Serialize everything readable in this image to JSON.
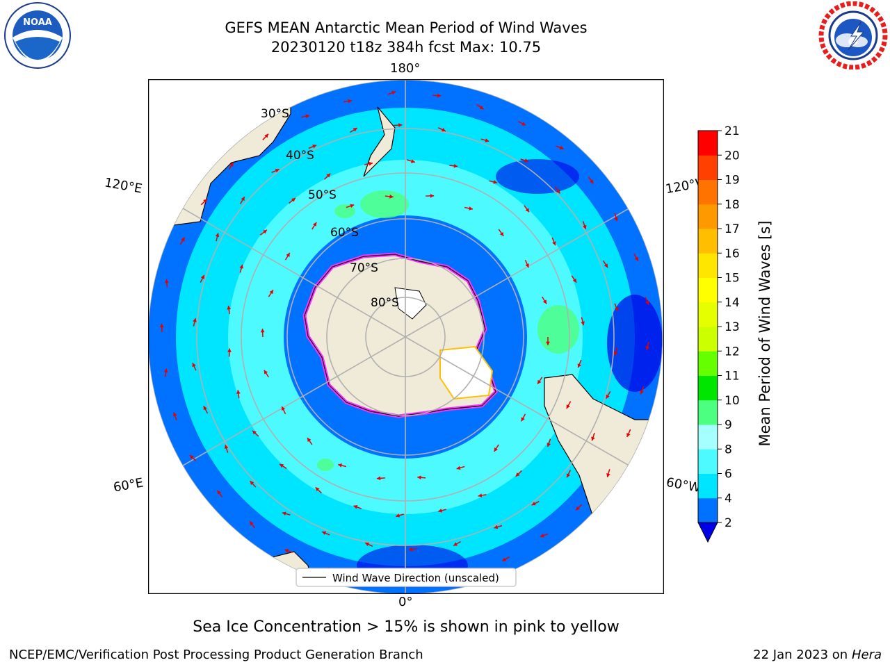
{
  "header": {
    "title_line1": "GEFS MEAN Antarctic Mean Period of Wind Waves",
    "title_line2": "20230120 t18z 384h fcst   Max: 10.75"
  },
  "logos": {
    "left": {
      "icon": "noaa-logo",
      "text": "NOAA"
    },
    "right": {
      "icon": "nws-logo",
      "text": "NATIONAL WEATHER SERVICE"
    }
  },
  "map": {
    "projection": "south polar stereographic",
    "longitude_labels": [
      "180°",
      "120°E",
      "120°W",
      "60°E",
      "60°W",
      "0°"
    ],
    "latitude_labels": [
      "30°S",
      "40°S",
      "50°S",
      "60°S",
      "70°S",
      "80°S"
    ],
    "legend": "Wind Wave Direction (unscaled)"
  },
  "colorbar": {
    "label": "Mean Period of Wind Waves [s]",
    "ticks": [
      "2",
      "4",
      "6",
      "8",
      "9",
      "10",
      "11",
      "12",
      "13",
      "14",
      "15",
      "16",
      "17",
      "18",
      "19",
      "20",
      "21"
    ],
    "colors": [
      "#0072ff",
      "#00e5ff",
      "#4dfaff",
      "#a6ffff",
      "#4dff80",
      "#00e600",
      "#66ff00",
      "#ccff00",
      "#e6ff00",
      "#ffff00",
      "#ffe600",
      "#ffbf00",
      "#ff9900",
      "#ff7300",
      "#ff4000",
      "#ff0000"
    ],
    "extend_color": "#0000e6"
  },
  "notes": {
    "sea_ice": "Sea Ice Concentration > 15% is shown in pink to yellow"
  },
  "footer": {
    "left": "NCEP/EMC/Verification Post Processing Product Generation Branch",
    "right_date": "22 Jan 2023 on",
    "right_host": "Hera"
  }
}
